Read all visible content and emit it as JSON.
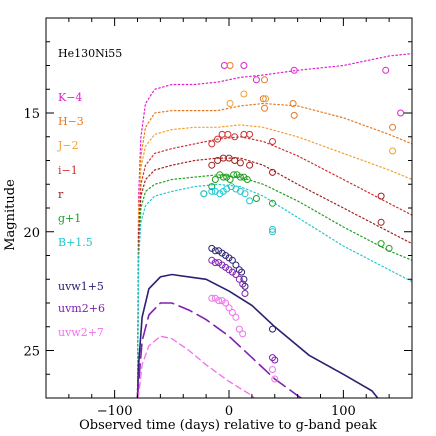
{
  "chart_data": {
    "type": "scatter",
    "title": "",
    "xlabel": "Observed time (days) relative to g-band peak",
    "ylabel": "Magnitude",
    "xlim": [
      -160,
      160
    ],
    "ylim": [
      27,
      11
    ],
    "y_inverted": true,
    "x_ticks": [
      -100,
      0,
      100
    ],
    "x_tick_labels": [
      "−100",
      "0",
      "100"
    ],
    "y_ticks": [
      15,
      20,
      25
    ],
    "y_tick_labels": [
      "15",
      "20",
      "25"
    ],
    "model_label": "He130Ni55",
    "series": [
      {
        "name": "K−4",
        "color": "#e020d0",
        "points": [
          [
            -4,
            13.0
          ],
          [
            13,
            13.0
          ],
          [
            24,
            13.6
          ],
          [
            57,
            13.2
          ],
          [
            137,
            13.2
          ],
          [
            150,
            15.0
          ]
        ],
        "model": [
          [
            -80,
            27
          ],
          [
            -79,
            18.5
          ],
          [
            -77,
            16
          ],
          [
            -73,
            14.6
          ],
          [
            -65,
            14.0
          ],
          [
            -50,
            13.8
          ],
          [
            -30,
            13.8
          ],
          [
            -10,
            13.7
          ],
          [
            10,
            13.5
          ],
          [
            30,
            13.4
          ],
          [
            60,
            13.2
          ],
          [
            100,
            13.0
          ],
          [
            140,
            12.6
          ],
          [
            160,
            12.5
          ]
        ]
      },
      {
        "name": "H−3",
        "color": "#e87820",
        "points": [
          [
            1,
            13.0
          ],
          [
            30,
            14.4
          ],
          [
            31,
            13.6
          ],
          [
            31,
            14.8
          ],
          [
            56,
            14.6
          ],
          [
            57,
            15.1
          ],
          [
            143,
            15.6
          ]
        ],
        "model": [
          [
            -80,
            27
          ],
          [
            -79,
            19
          ],
          [
            -77,
            16.8
          ],
          [
            -73,
            15.6
          ],
          [
            -65,
            15.0
          ],
          [
            -50,
            14.9
          ],
          [
            -30,
            14.9
          ],
          [
            -10,
            14.9
          ],
          [
            10,
            14.7
          ],
          [
            30,
            14.6
          ],
          [
            60,
            14.7
          ],
          [
            100,
            15.2
          ],
          [
            140,
            15.9
          ],
          [
            160,
            16.3
          ]
        ]
      },
      {
        "name": "J−2",
        "color": "#f0a030",
        "points": [
          [
            1,
            14.6
          ],
          [
            13,
            14.2
          ],
          [
            32,
            14.4
          ],
          [
            143,
            16.6
          ]
        ],
        "model": [
          [
            -80,
            27
          ],
          [
            -79,
            19.5
          ],
          [
            -77,
            17.3
          ],
          [
            -73,
            16.4
          ],
          [
            -65,
            15.9
          ],
          [
            -50,
            15.7
          ],
          [
            -30,
            15.6
          ],
          [
            -10,
            15.6
          ],
          [
            10,
            15.5
          ],
          [
            30,
            15.6
          ],
          [
            60,
            16.0
          ],
          [
            100,
            16.7
          ],
          [
            140,
            17.4
          ],
          [
            160,
            17.8
          ]
        ]
      },
      {
        "name": "i−1",
        "color": "#d03030",
        "points": [
          [
            -15,
            16.3
          ],
          [
            -10,
            16.1
          ],
          [
            -6,
            15.9
          ],
          [
            -1,
            15.9
          ],
          [
            5,
            16.0
          ],
          [
            13,
            15.9
          ],
          [
            18,
            15.9
          ],
          [
            38,
            16.2
          ]
        ],
        "model": [
          [
            -80,
            27
          ],
          [
            -79,
            20
          ],
          [
            -77,
            18
          ],
          [
            -73,
            17.2
          ],
          [
            -65,
            16.7
          ],
          [
            -50,
            16.5
          ],
          [
            -30,
            16.3
          ],
          [
            -10,
            16.1
          ],
          [
            10,
            16.0
          ],
          [
            30,
            16.2
          ],
          [
            60,
            16.8
          ],
          [
            100,
            17.8
          ],
          [
            140,
            18.8
          ],
          [
            160,
            19.3
          ]
        ]
      },
      {
        "name": "r",
        "color": "#a02020",
        "points": [
          [
            -15,
            17.2
          ],
          [
            -10,
            17.0
          ],
          [
            -5,
            16.9
          ],
          [
            0,
            16.9
          ],
          [
            5,
            17.0
          ],
          [
            10,
            17.1
          ],
          [
            18,
            17.2
          ],
          [
            38,
            17.5
          ],
          [
            133,
            18.5
          ],
          [
            133,
            19.6
          ]
        ],
        "model": [
          [
            -80,
            27
          ],
          [
            -79,
            20.5
          ],
          [
            -77,
            18.5
          ],
          [
            -73,
            17.8
          ],
          [
            -65,
            17.4
          ],
          [
            -50,
            17.2
          ],
          [
            -30,
            17.0
          ],
          [
            -10,
            16.9
          ],
          [
            10,
            16.9
          ],
          [
            30,
            17.2
          ],
          [
            60,
            18.0
          ],
          [
            100,
            19.0
          ],
          [
            140,
            20.0
          ],
          [
            160,
            20.5
          ]
        ]
      },
      {
        "name": "g+1",
        "color": "#20a020",
        "points": [
          [
            -22,
            18.4
          ],
          [
            -15,
            18.1
          ],
          [
            -12,
            17.8
          ],
          [
            -8,
            17.6
          ],
          [
            -5,
            17.7
          ],
          [
            -2,
            17.7
          ],
          [
            1,
            17.8
          ],
          [
            4,
            17.6
          ],
          [
            7,
            17.6
          ],
          [
            10,
            17.7
          ],
          [
            13,
            17.7
          ],
          [
            16,
            17.8
          ],
          [
            24,
            18.6
          ],
          [
            38,
            18.8
          ],
          [
            133,
            20.5
          ],
          [
            140,
            20.7
          ]
        ],
        "model": [
          [
            -80,
            27
          ],
          [
            -79,
            21
          ],
          [
            -77,
            19
          ],
          [
            -73,
            18.3
          ],
          [
            -65,
            18.0
          ],
          [
            -50,
            17.8
          ],
          [
            -30,
            17.7
          ],
          [
            -10,
            17.6
          ],
          [
            10,
            17.7
          ],
          [
            30,
            18.0
          ],
          [
            60,
            18.7
          ],
          [
            100,
            19.8
          ],
          [
            140,
            20.8
          ],
          [
            160,
            21.2
          ]
        ]
      },
      {
        "name": "B+1.5",
        "color": "#20c8d0",
        "points": [
          [
            -22,
            18.4
          ],
          [
            -15,
            18.3
          ],
          [
            -12,
            18.3
          ],
          [
            -8,
            18.4
          ],
          [
            -5,
            18.3
          ],
          [
            -2,
            18.2
          ],
          [
            2,
            18.1
          ],
          [
            6,
            18.2
          ],
          [
            10,
            18.3
          ],
          [
            14,
            18.4
          ],
          [
            18,
            18.7
          ],
          [
            38,
            19.9
          ],
          [
            38,
            20.0
          ]
        ],
        "model": [
          [
            -80,
            27
          ],
          [
            -79,
            21.2
          ],
          [
            -77,
            19.6
          ],
          [
            -73,
            18.9
          ],
          [
            -65,
            18.5
          ],
          [
            -50,
            18.3
          ],
          [
            -30,
            18.1
          ],
          [
            -10,
            18.0
          ],
          [
            10,
            18.1
          ],
          [
            30,
            18.5
          ],
          [
            60,
            19.4
          ],
          [
            100,
            20.6
          ],
          [
            140,
            21.6
          ],
          [
            160,
            22.1
          ]
        ]
      },
      {
        "name": "uvw1+5",
        "color": "#2a2270",
        "points": [
          [
            -15,
            20.7
          ],
          [
            -12,
            20.8
          ],
          [
            -9,
            20.8
          ],
          [
            -6,
            20.9
          ],
          [
            -3,
            21.0
          ],
          [
            0,
            21.1
          ],
          [
            3,
            21.2
          ],
          [
            6,
            21.4
          ],
          [
            9,
            21.6
          ],
          [
            11,
            21.7
          ],
          [
            13,
            22.0
          ],
          [
            14,
            22.3
          ],
          [
            38,
            24.1
          ]
        ],
        "model": [
          [
            -80,
            27
          ],
          [
            -79,
            25.6
          ],
          [
            -76,
            23.6
          ],
          [
            -70,
            22.4
          ],
          [
            -60,
            21.9
          ],
          [
            -50,
            21.8
          ],
          [
            -35,
            21.9
          ],
          [
            -20,
            22.0
          ],
          [
            0,
            22.5
          ],
          [
            20,
            23.1
          ],
          [
            40,
            24.0
          ],
          [
            70,
            25.2
          ],
          [
            100,
            26.0
          ],
          [
            125,
            26.7
          ],
          [
            130,
            27
          ]
        ]
      },
      {
        "name": "uvm2+6",
        "color": "#8020b0",
        "points": [
          [
            -15,
            21.2
          ],
          [
            -12,
            21.3
          ],
          [
            -9,
            21.3
          ],
          [
            -6,
            21.4
          ],
          [
            -3,
            21.5
          ],
          [
            0,
            21.6
          ],
          [
            3,
            21.7
          ],
          [
            6,
            21.8
          ],
          [
            9,
            22.0
          ],
          [
            12,
            22.2
          ],
          [
            14,
            22.6
          ],
          [
            38,
            25.3
          ],
          [
            40,
            25.4
          ]
        ],
        "model": [
          [
            -80,
            27
          ],
          [
            -79,
            26.4
          ],
          [
            -76,
            24.6
          ],
          [
            -70,
            23.5
          ],
          [
            -60,
            23.0
          ],
          [
            -50,
            23.0
          ],
          [
            -35,
            23.3
          ],
          [
            -20,
            23.7
          ],
          [
            0,
            24.4
          ],
          [
            20,
            25.3
          ],
          [
            40,
            26.2
          ],
          [
            60,
            26.9
          ],
          [
            63,
            27
          ]
        ]
      },
      {
        "name": "uvw2+7",
        "color": "#f070f0",
        "points": [
          [
            -15,
            22.8
          ],
          [
            -12,
            22.8
          ],
          [
            -9,
            22.9
          ],
          [
            -6,
            22.9
          ],
          [
            -3,
            23.0
          ],
          [
            0,
            23.2
          ],
          [
            3,
            23.4
          ],
          [
            6,
            23.6
          ],
          [
            9,
            24.1
          ],
          [
            12,
            24.3
          ],
          [
            38,
            25.8
          ],
          [
            40,
            26.2
          ]
        ],
        "model": [
          [
            -80,
            27
          ],
          [
            -79,
            26.9
          ],
          [
            -76,
            25.6
          ],
          [
            -70,
            24.8
          ],
          [
            -60,
            24.4
          ],
          [
            -50,
            24.5
          ],
          [
            -35,
            25.0
          ],
          [
            -20,
            25.6
          ],
          [
            0,
            26.3
          ],
          [
            20,
            26.9
          ],
          [
            22,
            27
          ]
        ]
      }
    ]
  }
}
